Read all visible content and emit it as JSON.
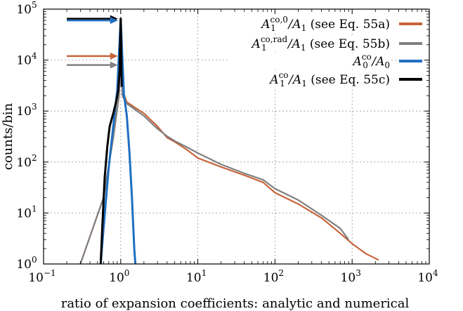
{
  "chart_data": {
    "type": "histogram",
    "xlabel": "ratio of expansion coefficients: analytic and numerical",
    "ylabel": "counts/bin",
    "xscale": "log",
    "yscale": "log",
    "xlim": [
      0.1,
      10000
    ],
    "ylim": [
      1,
      100000
    ],
    "grid": true,
    "legend_position": "top-right",
    "x_ticks": [
      {
        "base": "10",
        "exp": "−1",
        "value": 0.1
      },
      {
        "base": "10",
        "exp": "0",
        "value": 1
      },
      {
        "base": "10",
        "exp": "1",
        "value": 10
      },
      {
        "base": "10",
        "exp": "2",
        "value": 100
      },
      {
        "base": "10",
        "exp": "3",
        "value": 1000
      },
      {
        "base": "10",
        "exp": "4",
        "value": 10000
      }
    ],
    "y_ticks": [
      {
        "base": "10",
        "exp": "0",
        "value": 1
      },
      {
        "base": "10",
        "exp": "1",
        "value": 10
      },
      {
        "base": "10",
        "exp": "2",
        "value": 100
      },
      {
        "base": "10",
        "exp": "3",
        "value": 1000
      },
      {
        "base": "10",
        "exp": "4",
        "value": 10000
      },
      {
        "base": "10",
        "exp": "5",
        "value": 100000
      }
    ],
    "series": [
      {
        "key": "orange",
        "label_main": "A",
        "label_sup": "co,0",
        "label_sub": "1",
        "label_rest": "/A",
        "label_rest_sub": "1",
        "label_tail": " (see Eq. 55a)",
        "color": "#c8643c",
        "points": [
          [
            0.3,
            1
          ],
          [
            0.6,
            20
          ],
          [
            0.8,
            300
          ],
          [
            0.95,
            2000
          ],
          [
            1.0,
            60000
          ],
          [
            1.05,
            2500
          ],
          [
            1.2,
            1500
          ],
          [
            1.5,
            1200
          ],
          [
            2,
            900
          ],
          [
            3,
            500
          ],
          [
            4,
            300
          ],
          [
            5,
            250
          ],
          [
            7,
            180
          ],
          [
            10,
            120
          ],
          [
            20,
            80
          ],
          [
            40,
            55
          ],
          [
            70,
            40
          ],
          [
            100,
            25
          ],
          [
            200,
            15
          ],
          [
            400,
            8
          ],
          [
            700,
            4
          ],
          [
            1000,
            2.5
          ],
          [
            1500,
            1.6
          ],
          [
            2200,
            1.2
          ]
        ]
      },
      {
        "key": "gray",
        "label_main": "A",
        "label_sup": "co,rad",
        "label_sub": "1",
        "label_rest": "/A",
        "label_rest_sub": "1",
        "label_tail": " (see Eq. 55b)",
        "color": "#808080",
        "points": [
          [
            0.3,
            1
          ],
          [
            0.6,
            20
          ],
          [
            0.8,
            300
          ],
          [
            0.95,
            2000
          ],
          [
            1.0,
            60000
          ],
          [
            1.05,
            2000
          ],
          [
            1.2,
            1400
          ],
          [
            1.5,
            1100
          ],
          [
            2,
            800
          ],
          [
            3,
            450
          ],
          [
            4,
            320
          ],
          [
            5,
            260
          ],
          [
            7,
            200
          ],
          [
            10,
            150
          ],
          [
            20,
            90
          ],
          [
            40,
            60
          ],
          [
            70,
            45
          ],
          [
            100,
            30
          ],
          [
            200,
            18
          ],
          [
            400,
            9
          ],
          [
            700,
            5
          ],
          [
            900,
            3
          ]
        ]
      },
      {
        "key": "blue",
        "label_main": "A",
        "label_sup": "co",
        "label_sub": "0",
        "label_rest": "/A",
        "label_rest_sub": "0",
        "label_tail": "",
        "color": "#1f6fc0",
        "points": [
          [
            0.55,
            1
          ],
          [
            0.6,
            5
          ],
          [
            0.7,
            80
          ],
          [
            0.8,
            500
          ],
          [
            0.9,
            2500
          ],
          [
            1.0,
            65000
          ],
          [
            1.1,
            2200
          ],
          [
            1.2,
            800
          ],
          [
            1.3,
            150
          ],
          [
            1.4,
            20
          ],
          [
            1.5,
            2
          ],
          [
            1.55,
            1
          ]
        ]
      },
      {
        "key": "black",
        "label_main": "A",
        "label_sup": "co",
        "label_sub": "1",
        "label_rest": "/A",
        "label_rest_sub": "1",
        "label_tail": " (see Eq. 55c)",
        "color": "#000000",
        "points": [
          [
            0.55,
            1
          ],
          [
            0.58,
            6
          ],
          [
            0.62,
            50
          ],
          [
            0.67,
            200
          ],
          [
            0.72,
            500
          ],
          [
            0.8,
            900
          ],
          [
            0.87,
            1500
          ],
          [
            0.93,
            2500
          ],
          [
            0.97,
            6000
          ],
          [
            1.0,
            65000
          ],
          [
            1.03,
            3000
          ]
        ]
      }
    ],
    "arrows": [
      {
        "key": "black",
        "color": "#000000",
        "y": 65000,
        "x_from": 0.2,
        "x_to": 1.0
      },
      {
        "key": "blue",
        "color": "#1f6fc0",
        "y": 60000,
        "x_from": 0.2,
        "x_to": 1.0
      },
      {
        "key": "orange",
        "color": "#c8643c",
        "y": 12000,
        "x_from": 0.2,
        "x_to": 1.0
      },
      {
        "key": "gray",
        "color": "#808080",
        "y": 8000,
        "x_from": 0.2,
        "x_to": 1.0
      }
    ]
  }
}
